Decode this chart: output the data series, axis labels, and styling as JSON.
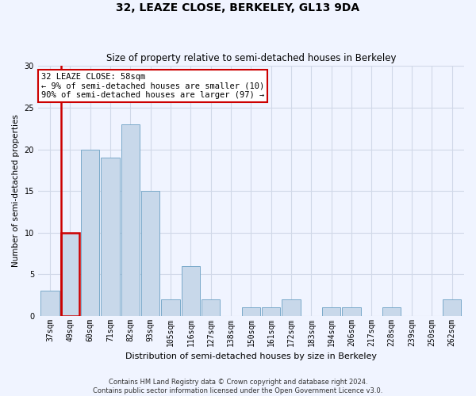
{
  "title": "32, LEAZE CLOSE, BERKELEY, GL13 9DA",
  "subtitle": "Size of property relative to semi-detached houses in Berkeley",
  "xlabel": "Distribution of semi-detached houses by size in Berkeley",
  "ylabel": "Number of semi-detached properties",
  "categories": [
    "37sqm",
    "49sqm",
    "60sqm",
    "71sqm",
    "82sqm",
    "93sqm",
    "105sqm",
    "116sqm",
    "127sqm",
    "138sqm",
    "150sqm",
    "161sqm",
    "172sqm",
    "183sqm",
    "194sqm",
    "206sqm",
    "217sqm",
    "228sqm",
    "239sqm",
    "250sqm",
    "262sqm"
  ],
  "values": [
    3,
    10,
    20,
    19,
    23,
    15,
    2,
    6,
    2,
    0,
    1,
    1,
    2,
    0,
    1,
    1,
    0,
    1,
    0,
    0,
    2
  ],
  "bar_color": "#c8d8ea",
  "bar_edge_color": "#7aaaca",
  "highlight_bar_index": 1,
  "highlight_bar_edge_color": "#cc0000",
  "annotation_text": "32 LEAZE CLOSE: 58sqm\n← 9% of semi-detached houses are smaller (10)\n90% of semi-detached houses are larger (97) →",
  "annotation_box_color": "white",
  "annotation_box_edge_color": "#cc0000",
  "red_line_x": 1,
  "ylim": [
    0,
    30
  ],
  "yticks": [
    0,
    5,
    10,
    15,
    20,
    25,
    30
  ],
  "footer1": "Contains HM Land Registry data © Crown copyright and database right 2024.",
  "footer2": "Contains public sector information licensed under the Open Government Licence v3.0.",
  "background_color": "#f0f4ff",
  "grid_color": "#d0d8e8",
  "title_fontsize": 10,
  "subtitle_fontsize": 8.5,
  "xlabel_fontsize": 8,
  "ylabel_fontsize": 7.5,
  "tick_fontsize": 7,
  "footer_fontsize": 6,
  "annotation_fontsize": 7.5
}
